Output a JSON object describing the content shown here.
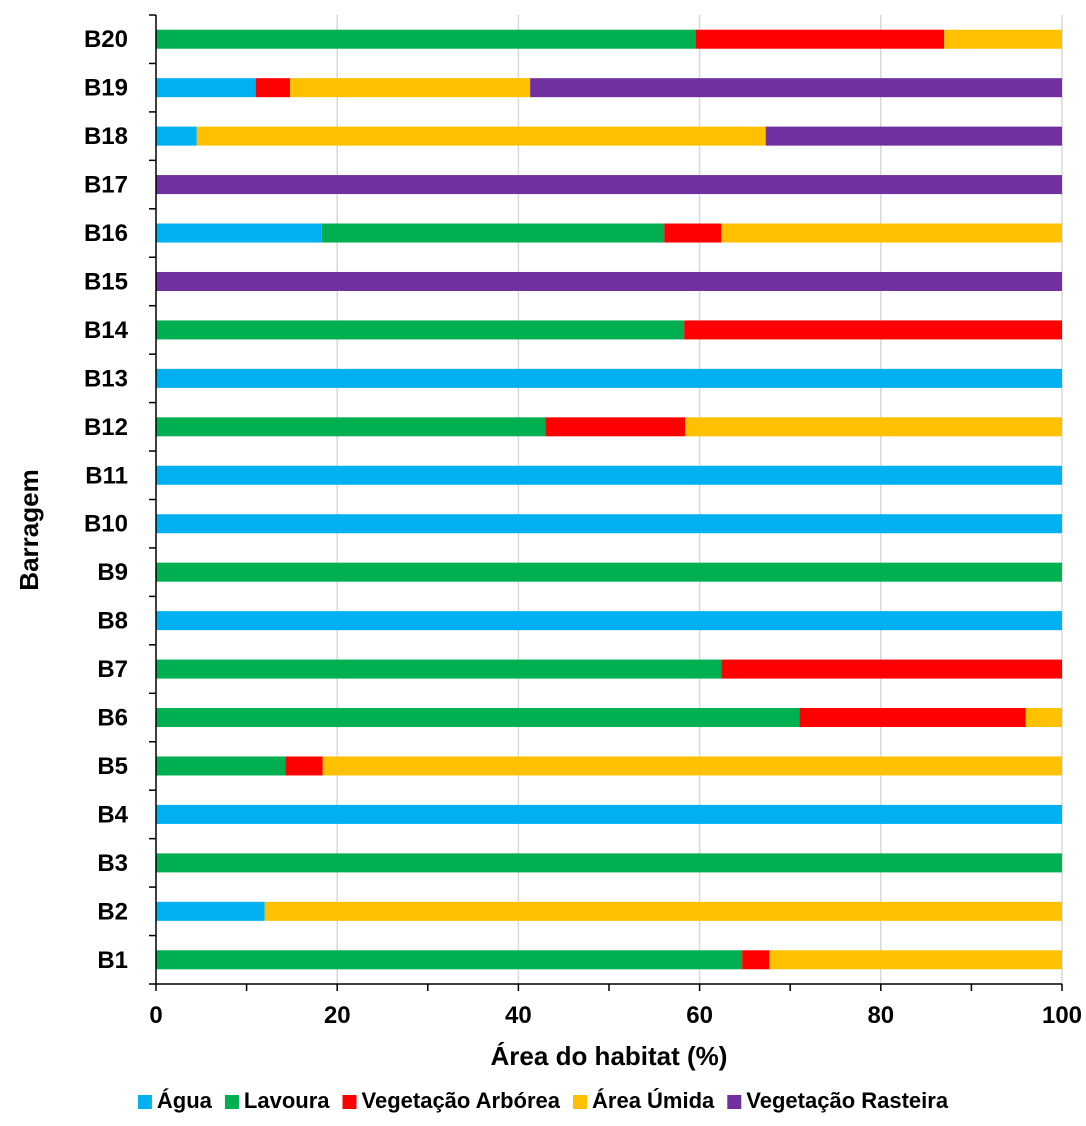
{
  "chart_data": {
    "type": "bar",
    "orientation": "horizontal",
    "stacked": true,
    "title": "",
    "xlabel": "Área do habitat (%)",
    "ylabel": "Barragem",
    "xlim": [
      0,
      100
    ],
    "xticks": [
      0,
      20,
      40,
      60,
      80,
      100
    ],
    "grid": "vertical",
    "legend_position": "bottom",
    "categories": [
      "B1",
      "B2",
      "B3",
      "B4",
      "B5",
      "B6",
      "B7",
      "B8",
      "B9",
      "B10",
      "B11",
      "B12",
      "B13",
      "B14",
      "B15",
      "B16",
      "B17",
      "B18",
      "B19",
      "B20"
    ],
    "series": [
      {
        "name": "Água",
        "color": "#00B0F0",
        "values": [
          0,
          12,
          0,
          100,
          0,
          0,
          0,
          100,
          0,
          100,
          100,
          0,
          100,
          0,
          0,
          18.3,
          0,
          4.5,
          11,
          0
        ]
      },
      {
        "name": "Lavoura",
        "color": "#00B050",
        "values": [
          64.7,
          0,
          100,
          0,
          14.3,
          71,
          62.4,
          0,
          100,
          0,
          0,
          43,
          0,
          58.3,
          0,
          37.8,
          0,
          0,
          0,
          59.6
        ]
      },
      {
        "name": "Vegetação Arbórea",
        "color": "#FF0000",
        "values": [
          3,
          0,
          0,
          0,
          4.1,
          25,
          37.6,
          0,
          0,
          0,
          0,
          15.4,
          0,
          41.7,
          0,
          6.3,
          0,
          0,
          3.8,
          27.4
        ]
      },
      {
        "name": "Área Úmida",
        "color": "#FFC000",
        "values": [
          32.3,
          88,
          0,
          0,
          81.6,
          4,
          0,
          0,
          0,
          0,
          0,
          41.6,
          0,
          0,
          0,
          37.6,
          0,
          62.8,
          26.5,
          13
        ]
      },
      {
        "name": "Vegetação Rasteira",
        "color": "#7030A0",
        "values": [
          0,
          0,
          0,
          0,
          0,
          0,
          0,
          0,
          0,
          0,
          0,
          0,
          0,
          0,
          100,
          0,
          100,
          32.7,
          58.7,
          0
        ]
      }
    ]
  }
}
